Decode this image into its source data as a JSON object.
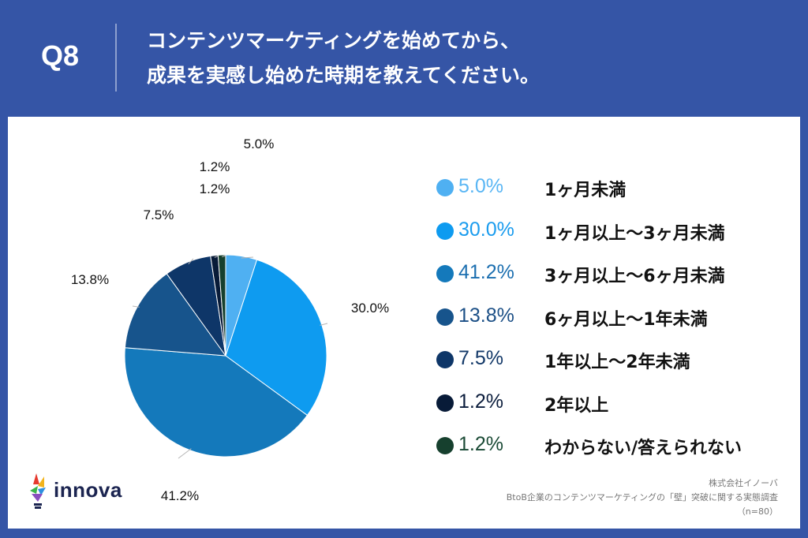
{
  "question": {
    "number": "Q8",
    "line1": "コンテンツマーケティングを始めてから、",
    "line2": "成果を実感し始めた時期を教えてください。"
  },
  "chart_data": {
    "type": "pie",
    "categories": [
      "1ヶ月未満",
      "1ヶ月以上〜3ヶ月未満",
      "3ヶ月以上〜6ヶ月未満",
      "6ヶ月以上〜1年未満",
      "1年以上〜2年未満",
      "2年以上",
      "わからない/答えられない"
    ],
    "values": [
      5.0,
      30.0,
      41.2,
      13.8,
      7.5,
      1.2,
      1.2
    ],
    "labels": [
      "5.0%",
      "30.0%",
      "41.2%",
      "13.8%",
      "7.5%",
      "1.2%",
      "1.2%"
    ],
    "colors": [
      "#4fb0f2",
      "#0e9bf0",
      "#1479bb",
      "#17548c",
      "#0e3668",
      "#081b38",
      "#16402e"
    ],
    "legend_text_colors": [
      "#5ab6f4",
      "#1a9cee",
      "#1c6fb0",
      "#1b4f86",
      "#123868",
      "#0b1d3c",
      "#1a4a35"
    ],
    "legend_position": "right"
  },
  "brand": {
    "logo_text": "innova"
  },
  "source": {
    "company": "株式会社イノーバ",
    "survey": "BtoB企業のコンテンツマーケティングの「壁」突破に関する実態調査",
    "sample": "（n=80）"
  }
}
